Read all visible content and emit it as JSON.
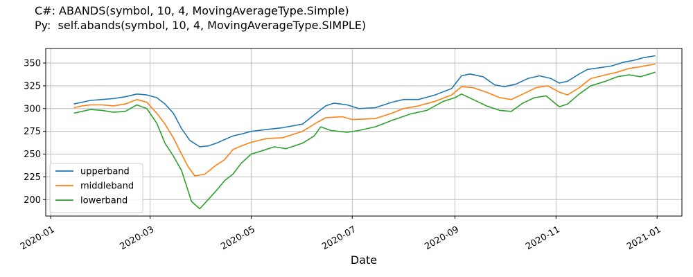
{
  "title": {
    "line1": "C#: ABANDS(symbol, 10, 4, MovingAverageType.Simple)",
    "line2": "Py:  self.abands(symbol, 10, 4, MovingAverageType.SIMPLE)"
  },
  "chart_data": {
    "type": "line",
    "xlabel": "Date",
    "ylabel": "",
    "xlim": [
      "2019-12-29",
      "2021-01-16"
    ],
    "ylim": [
      182,
      366
    ],
    "x_ticks": [
      "2020-01",
      "2020-03",
      "2020-05",
      "2020-07",
      "2020-09",
      "2020-11",
      "2021-01"
    ],
    "y_ticks": [
      200,
      225,
      250,
      275,
      300,
      325,
      350
    ],
    "grid": true,
    "legend_position": "center-left",
    "series": [
      {
        "name": "upperband",
        "color": "#1f77b4",
        "points": [
          [
            "2020-01-15",
            305
          ],
          [
            "2020-01-20",
            307
          ],
          [
            "2020-01-25",
            309
          ],
          [
            "2020-02-01",
            310
          ],
          [
            "2020-02-08",
            311
          ],
          [
            "2020-02-15",
            313
          ],
          [
            "2020-02-22",
            316
          ],
          [
            "2020-02-28",
            315
          ],
          [
            "2020-03-05",
            312
          ],
          [
            "2020-03-10",
            305
          ],
          [
            "2020-03-15",
            295
          ],
          [
            "2020-03-20",
            278
          ],
          [
            "2020-03-25",
            265
          ],
          [
            "2020-03-31",
            258
          ],
          [
            "2020-04-05",
            259
          ],
          [
            "2020-04-10",
            262
          ],
          [
            "2020-04-15",
            266
          ],
          [
            "2020-04-20",
            270
          ],
          [
            "2020-04-25",
            272
          ],
          [
            "2020-05-01",
            275
          ],
          [
            "2020-05-10",
            277
          ],
          [
            "2020-05-20",
            279
          ],
          [
            "2020-06-01",
            283
          ],
          [
            "2020-06-10",
            296
          ],
          [
            "2020-06-15",
            303
          ],
          [
            "2020-06-20",
            306
          ],
          [
            "2020-06-28",
            304
          ],
          [
            "2020-07-05",
            300
          ],
          [
            "2020-07-15",
            301
          ],
          [
            "2020-07-25",
            307
          ],
          [
            "2020-08-01",
            310
          ],
          [
            "2020-08-10",
            310
          ],
          [
            "2020-08-20",
            315
          ],
          [
            "2020-08-30",
            322
          ],
          [
            "2020-09-05",
            336
          ],
          [
            "2020-09-10",
            338
          ],
          [
            "2020-09-18",
            335
          ],
          [
            "2020-09-25",
            326
          ],
          [
            "2020-10-01",
            324
          ],
          [
            "2020-10-08",
            327
          ],
          [
            "2020-10-15",
            333
          ],
          [
            "2020-10-22",
            336
          ],
          [
            "2020-10-29",
            333
          ],
          [
            "2020-11-03",
            328
          ],
          [
            "2020-11-08",
            330
          ],
          [
            "2020-11-15",
            338
          ],
          [
            "2020-11-20",
            343
          ],
          [
            "2020-11-28",
            345
          ],
          [
            "2020-12-05",
            347
          ],
          [
            "2020-12-12",
            351
          ],
          [
            "2020-12-18",
            353
          ],
          [
            "2020-12-24",
            356
          ],
          [
            "2020-12-31",
            358
          ]
        ]
      },
      {
        "name": "middleband",
        "color": "#ff7f0e",
        "points": [
          [
            "2020-01-15",
            301
          ],
          [
            "2020-01-20",
            303
          ],
          [
            "2020-01-25",
            304
          ],
          [
            "2020-02-01",
            304
          ],
          [
            "2020-02-08",
            303
          ],
          [
            "2020-02-15",
            305
          ],
          [
            "2020-02-22",
            310
          ],
          [
            "2020-02-28",
            307
          ],
          [
            "2020-03-05",
            295
          ],
          [
            "2020-03-10",
            283
          ],
          [
            "2020-03-15",
            268
          ],
          [
            "2020-03-20",
            250
          ],
          [
            "2020-03-24",
            236
          ],
          [
            "2020-03-28",
            226
          ],
          [
            "2020-04-03",
            228
          ],
          [
            "2020-04-10",
            238
          ],
          [
            "2020-04-15",
            244
          ],
          [
            "2020-04-20",
            255
          ],
          [
            "2020-04-25",
            259
          ],
          [
            "2020-05-01",
            263
          ],
          [
            "2020-05-10",
            267
          ],
          [
            "2020-05-20",
            268
          ],
          [
            "2020-06-01",
            275
          ],
          [
            "2020-06-10",
            285
          ],
          [
            "2020-06-15",
            290
          ],
          [
            "2020-06-25",
            291
          ],
          [
            "2020-07-01",
            288
          ],
          [
            "2020-07-15",
            289
          ],
          [
            "2020-07-25",
            295
          ],
          [
            "2020-08-01",
            300
          ],
          [
            "2020-08-10",
            303
          ],
          [
            "2020-08-20",
            308
          ],
          [
            "2020-08-30",
            315
          ],
          [
            "2020-09-05",
            324
          ],
          [
            "2020-09-12",
            323
          ],
          [
            "2020-09-20",
            318
          ],
          [
            "2020-09-28",
            312
          ],
          [
            "2020-10-05",
            310
          ],
          [
            "2020-10-12",
            316
          ],
          [
            "2020-10-20",
            323
          ],
          [
            "2020-10-27",
            325
          ],
          [
            "2020-11-03",
            318
          ],
          [
            "2020-11-08",
            315
          ],
          [
            "2020-11-15",
            323
          ],
          [
            "2020-11-22",
            333
          ],
          [
            "2020-12-01",
            337
          ],
          [
            "2020-12-08",
            340
          ],
          [
            "2020-12-15",
            344
          ],
          [
            "2020-12-22",
            346
          ],
          [
            "2020-12-31",
            349
          ]
        ]
      },
      {
        "name": "lowerband",
        "color": "#2ca02c",
        "points": [
          [
            "2020-01-15",
            295
          ],
          [
            "2020-01-20",
            297
          ],
          [
            "2020-01-25",
            299
          ],
          [
            "2020-02-01",
            298
          ],
          [
            "2020-02-08",
            296
          ],
          [
            "2020-02-15",
            297
          ],
          [
            "2020-02-22",
            304
          ],
          [
            "2020-02-28",
            300
          ],
          [
            "2020-03-05",
            284
          ],
          [
            "2020-03-10",
            262
          ],
          [
            "2020-03-15",
            248
          ],
          [
            "2020-03-20",
            232
          ],
          [
            "2020-03-23",
            215
          ],
          [
            "2020-03-26",
            198
          ],
          [
            "2020-03-31",
            190
          ],
          [
            "2020-04-05",
            200
          ],
          [
            "2020-04-10",
            210
          ],
          [
            "2020-04-15",
            221
          ],
          [
            "2020-04-20",
            228
          ],
          [
            "2020-04-25",
            240
          ],
          [
            "2020-05-01",
            250
          ],
          [
            "2020-05-08",
            254
          ],
          [
            "2020-05-15",
            258
          ],
          [
            "2020-05-22",
            256
          ],
          [
            "2020-06-01",
            262
          ],
          [
            "2020-06-08",
            270
          ],
          [
            "2020-06-12",
            280
          ],
          [
            "2020-06-18",
            276
          ],
          [
            "2020-06-28",
            274
          ],
          [
            "2020-07-05",
            276
          ],
          [
            "2020-07-15",
            280
          ],
          [
            "2020-07-25",
            287
          ],
          [
            "2020-08-05",
            294
          ],
          [
            "2020-08-15",
            298
          ],
          [
            "2020-08-25",
            308
          ],
          [
            "2020-09-01",
            312
          ],
          [
            "2020-09-05",
            316
          ],
          [
            "2020-09-12",
            310
          ],
          [
            "2020-09-20",
            303
          ],
          [
            "2020-09-28",
            298
          ],
          [
            "2020-10-05",
            297
          ],
          [
            "2020-10-12",
            306
          ],
          [
            "2020-10-19",
            312
          ],
          [
            "2020-10-26",
            314
          ],
          [
            "2020-11-03",
            302
          ],
          [
            "2020-11-08",
            305
          ],
          [
            "2020-11-15",
            316
          ],
          [
            "2020-11-22",
            325
          ],
          [
            "2020-12-01",
            330
          ],
          [
            "2020-12-08",
            335
          ],
          [
            "2020-12-15",
            337
          ],
          [
            "2020-12-22",
            335
          ],
          [
            "2020-12-31",
            340
          ]
        ]
      }
    ]
  }
}
